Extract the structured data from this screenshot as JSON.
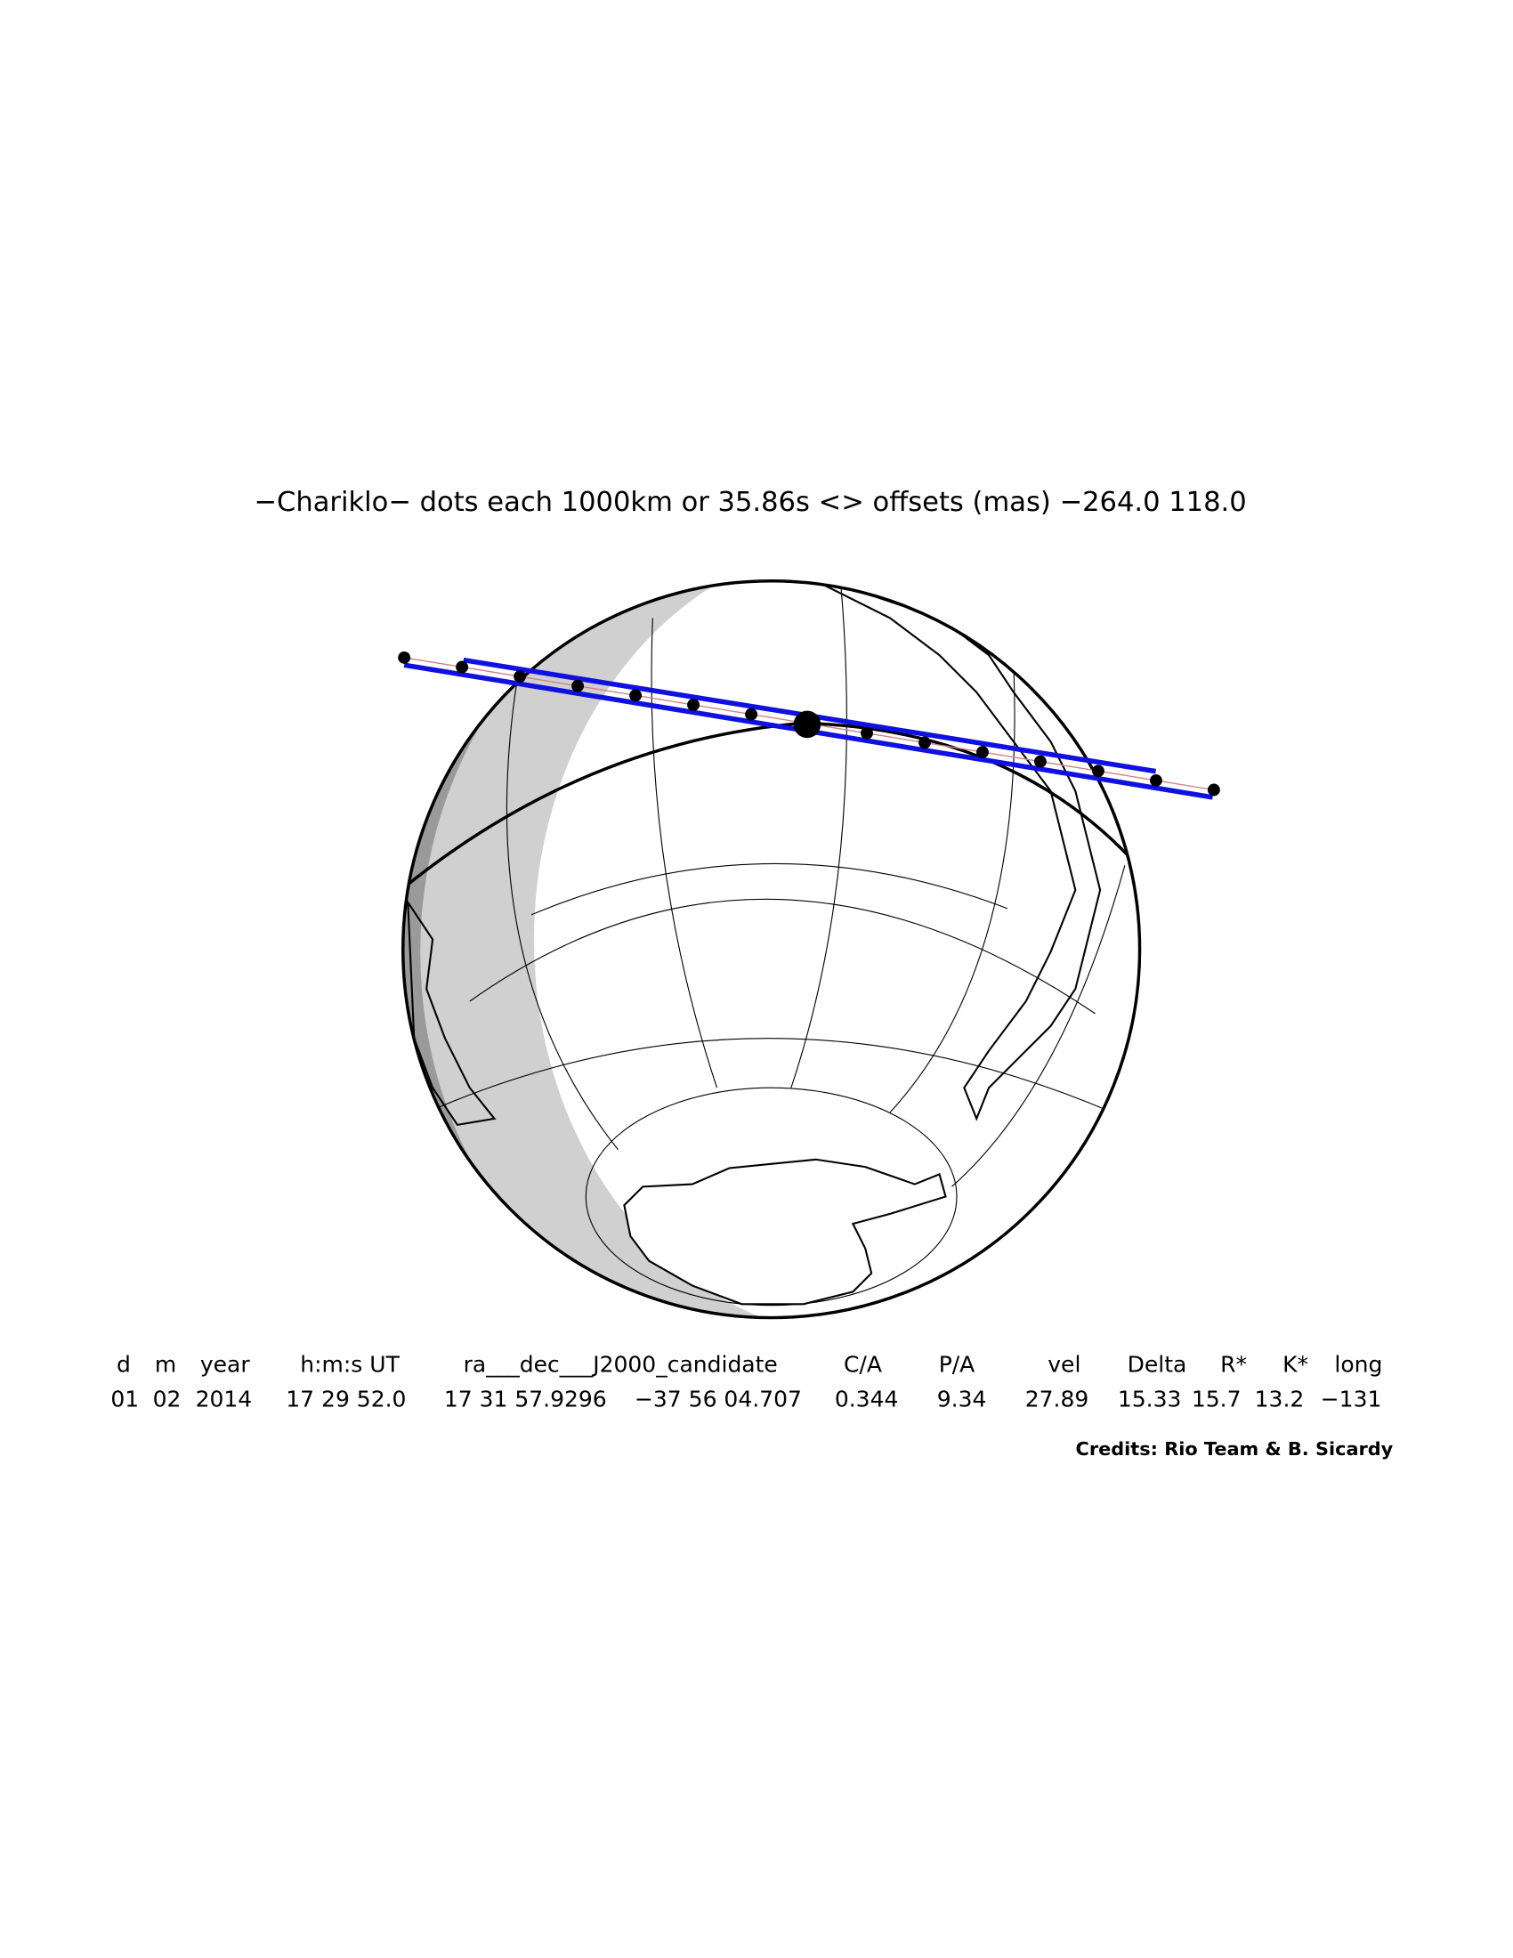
{
  "header": {
    "title": "−Chariklo− dots each 1000km or 35.86s <> offsets (mas) −264.0   118.0"
  },
  "table": {
    "columns": [
      "d",
      "m",
      "year",
      "h:m:s UT",
      "ra___dec___J2000_candidate",
      "C/A",
      "P/A",
      "vel",
      "Delta",
      "R*",
      "K*",
      "long"
    ],
    "row": [
      "01",
      "02",
      "2014",
      "17 29 52.0",
      "17 31 57.9296",
      "−37 56 04.707",
      "0.344",
      "9.34",
      "27.89",
      "15.33",
      "15.7",
      "13.2",
      "−131"
    ]
  },
  "footer": {
    "credits": "Credits: Rio Team & B. Sicardy"
  }
}
